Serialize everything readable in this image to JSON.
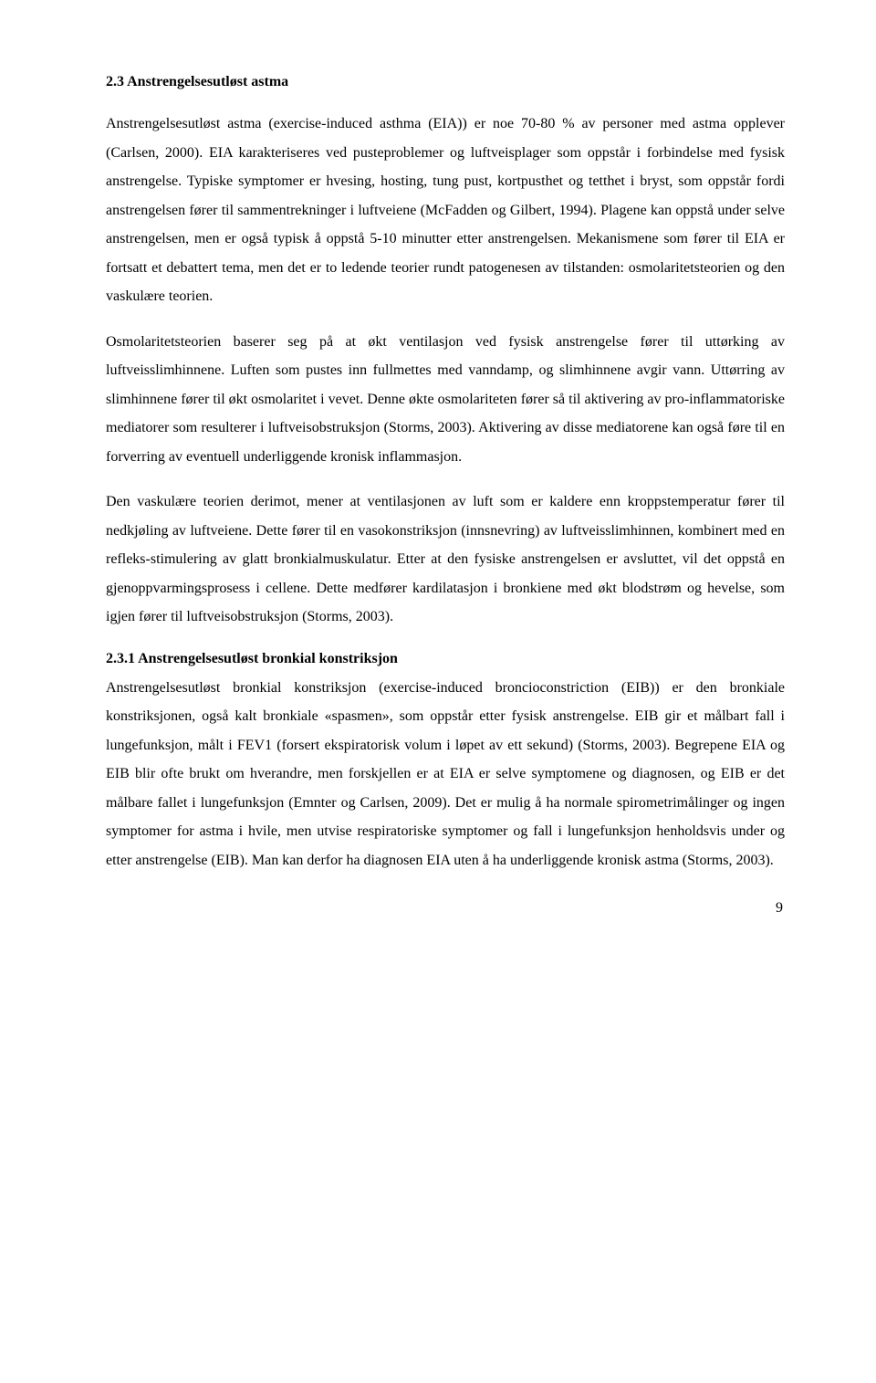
{
  "section": {
    "heading": "2.3 Anstrengelsesutløst astma",
    "paragraphs": [
      "Anstrengelsesutløst astma (exercise-induced asthma (EIA)) er noe 70-80 % av personer med astma opplever (Carlsen, 2000). EIA karakteriseres ved pusteproblemer og luftveisplager som oppstår i forbindelse med fysisk anstrengelse. Typiske symptomer er hvesing, hosting, tung pust, kortpusthet og tetthet i bryst, som oppstår fordi anstrengelsen fører til sammentrekninger i luftveiene (McFadden og Gilbert, 1994). Plagene kan oppstå under selve anstrengelsen, men er også typisk å oppstå 5-10 minutter etter anstrengelsen. Mekanismene som fører til EIA er fortsatt et debattert tema, men det er to ledende teorier rundt patogenesen av tilstanden: osmolaritetsteorien og den vaskulære teorien.",
      "Osmolaritetsteorien baserer seg på at økt ventilasjon ved fysisk anstrengelse fører til uttørking av luftveisslimhinnene. Luften som pustes inn fullmettes med vanndamp, og slimhinnene avgir vann. Uttørring av slimhinnene fører til økt osmolaritet i vevet. Denne økte osmolariteten fører så til aktivering av pro-inflammatoriske mediatorer som resulterer i luftveisobstruksjon (Storms, 2003). Aktivering av disse mediatorene kan også føre til en forverring av eventuell underliggende kronisk inflammasjon.",
      "Den vaskulære teorien derimot, mener at ventilasjonen av luft som er kaldere enn kroppstemperatur fører til nedkjøling av luftveiene. Dette fører til en vasokonstriksjon (innsnevring) av luftveisslimhinnen, kombinert med en refleks-stimulering av glatt bronkialmuskulatur. Etter at den fysiske anstrengelsen er avsluttet, vil det oppstå en gjenoppvarmingsprosess i cellene. Dette medfører kardilatasjon i bronkiene med økt blodstrøm og hevelse, som igjen fører til luftveisobstruksjon (Storms, 2003)."
    ]
  },
  "subsection": {
    "heading": "2.3.1 Anstrengelsesutløst bronkial konstriksjon",
    "paragraph": "Anstrengelsesutløst bronkial konstriksjon (exercise-induced broncioconstriction (EIB)) er den bronkiale konstriksjonen, også kalt bronkiale «spasmen», som oppstår etter fysisk anstrengelse. EIB gir et målbart fall i lungefunksjon, målt i FEV1 (forsert ekspiratorisk volum i løpet av ett sekund) (Storms, 2003). Begrepene EIA og EIB blir ofte brukt om hverandre, men forskjellen er at EIA er selve symptomene og diagnosen, og EIB er det målbare fallet i lungefunksjon (Emnter og Carlsen, 2009). Det er mulig å ha normale spirometrimålinger og ingen symptomer for astma i hvile, men utvise respiratoriske symptomer og fall i lungefunksjon henholdsvis under og etter anstrengelse (EIB). Man kan derfor ha diagnosen EIA uten å ha underliggende kronisk astma (Storms, 2003)."
  },
  "pageNumber": "9"
}
